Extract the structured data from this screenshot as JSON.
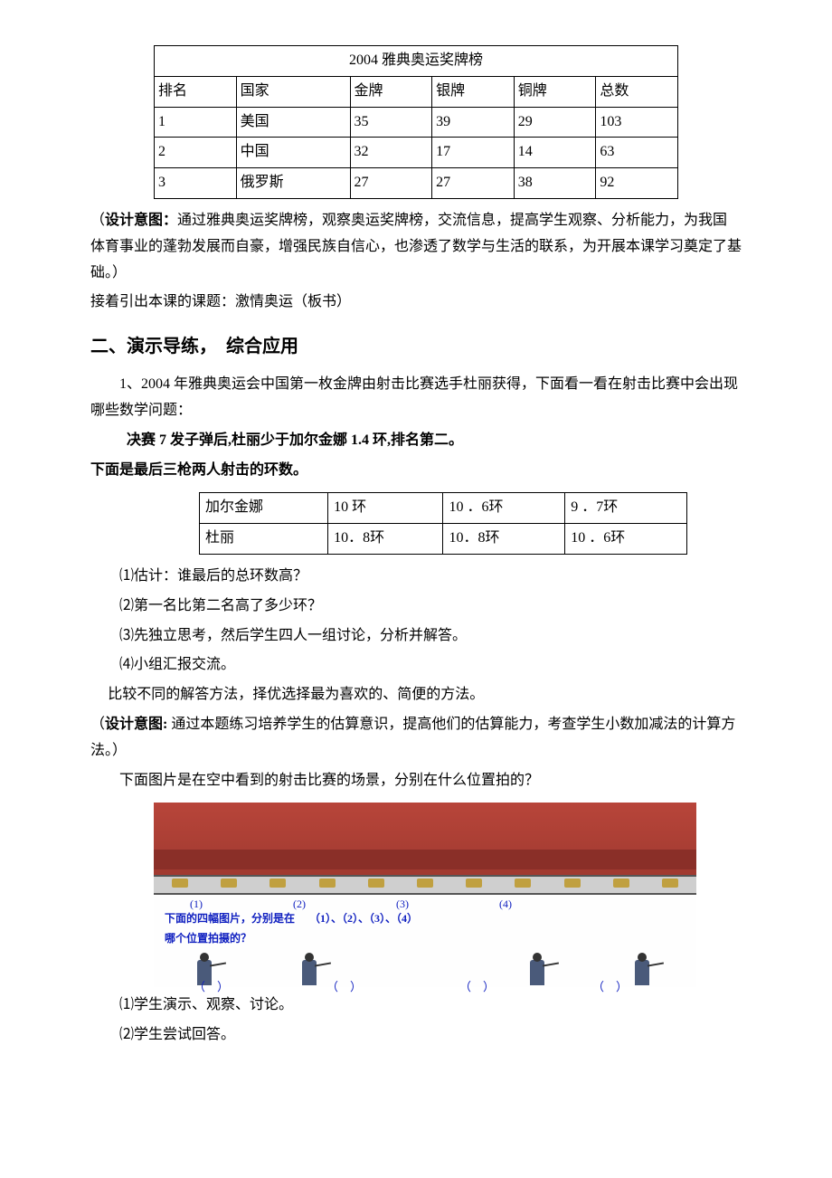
{
  "medal_table": {
    "title": "2004 雅典奥运奖牌榜",
    "columns": [
      "排名",
      "国家",
      "金牌",
      "银牌",
      "铜牌",
      "总数"
    ],
    "rows": [
      [
        "1",
        "美国",
        "35",
        "39",
        "29",
        "103"
      ],
      [
        "2",
        "中国",
        "32",
        "17",
        "14",
        "63"
      ],
      [
        "3",
        "俄罗斯",
        "27",
        "27",
        "38",
        "92"
      ]
    ]
  },
  "design_label": "设计意图：",
  "design_para1": "通过雅典奥运奖牌榜，观察奥运奖牌榜，交流信息，提高学生观察、分析能力，为我国体育事业的蓬勃发展而自豪，增强民族自信心，也渗透了数学与生活的联系，为开展本课学习奠定了基础。）",
  "topic_intro": "接着引出本课的课题：激情奥运（板书）",
  "section2_title": "二、演示导练，　综合应用",
  "para2_1": "1、2004 年雅典奥运会中国第一枚金牌由射击比赛选手杜丽获得，下面看一看在射击比赛中会出现哪些数学问题：",
  "bold_line": "决赛 7 发子弹后,杜丽少于加尔金娜 1.4 环,排名第二。",
  "bold_line2": "下面是最后三枪两人射击的环数。",
  "shooting_table": {
    "rows": [
      [
        "加尔金娜",
        "10 环",
        "10 ．6环",
        "9 ．7环"
      ],
      [
        "杜丽",
        "10．8环",
        "10．8环",
        "10 ．6环"
      ]
    ]
  },
  "q1": "⑴估计：谁最后的总环数高？",
  "q2": "⑵第一名比第二名高了多少环？",
  "q3": "⑶先独立思考，然后学生四人一组讨论，分析并解答。",
  "q4": "⑷小组汇报交流。",
  "compare": "比较不同的解答方法，择优选择最为喜欢的、简便的方法。",
  "design_label2": "设计意图:",
  "design_para2": " 通过本题练习培养学生的估算意识，提高他们的估算能力，考查学生小数加减法的计算方法。）",
  "photo_intro": "下面图片是在空中看到的射击比赛的场景，分别在什么位置拍的？",
  "image": {
    "pos_labels": [
      "(1)",
      "(2)",
      "(3)",
      "(4)"
    ],
    "question_text1": "下面的四幅图片，分别是在",
    "question_text2": "哪个位置拍摄的？",
    "nums": "（1）、（2）、（3）、（4）",
    "paren_empty": [
      "（　）",
      "（　）",
      "（　）",
      "（　）"
    ]
  },
  "s1": "⑴学生演示、观察、讨论。",
  "s2": "⑵学生尝试回答。"
}
